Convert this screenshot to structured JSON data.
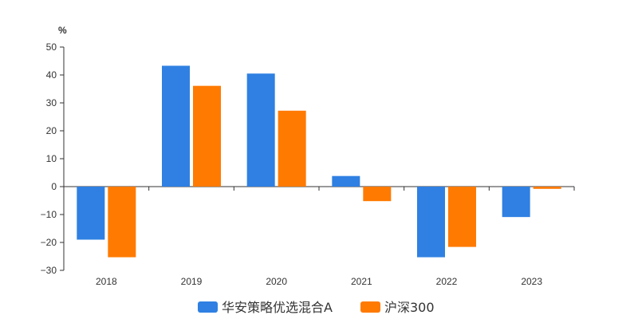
{
  "chart_data": {
    "type": "bar",
    "title": "",
    "xlabel": "",
    "ylabel": "%",
    "categories": [
      "2018",
      "2019",
      "2020",
      "2021",
      "2022",
      "2023"
    ],
    "series": [
      {
        "name": "华安策略优选混合A",
        "color": "#2f80e2",
        "values": [
          -19.0,
          43.3,
          40.5,
          3.8,
          -25.3,
          -10.9
        ]
      },
      {
        "name": "沪深300",
        "color": "#ff7a00",
        "values": [
          -25.3,
          36.1,
          27.2,
          -5.2,
          -21.6,
          -0.8
        ]
      }
    ],
    "ylim": [
      -30,
      50
    ],
    "yticks": [
      -30,
      -20,
      -10,
      0,
      10,
      20,
      30,
      40,
      50
    ],
    "grid": false,
    "legend_position": "bottom-center"
  }
}
